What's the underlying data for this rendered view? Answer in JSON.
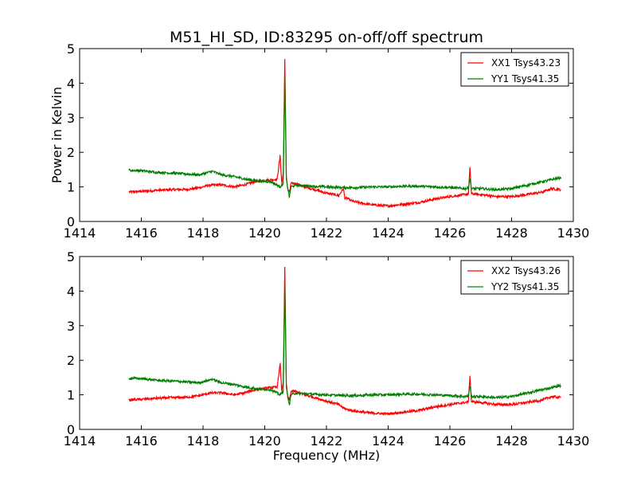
{
  "title": "M51_HI_SD, ID:83295 on-off/off spectrum",
  "colors": {
    "xx": "#ff0000",
    "yy": "#008000"
  },
  "chart_data": [
    {
      "type": "line",
      "xlabel": "",
      "ylabel": "Power in Kelvin",
      "xlim": [
        1414,
        1430
      ],
      "ylim": [
        0,
        5
      ],
      "x_ticks": [
        1414,
        1416,
        1418,
        1420,
        1422,
        1424,
        1426,
        1428,
        1430
      ],
      "y_ticks": [
        0,
        1,
        2,
        3,
        4,
        5
      ],
      "grid": false,
      "legend": "top-right",
      "series": [
        {
          "name": "XX1 Tsys43.23",
          "color": "#ff0000",
          "x": [
            1415.6,
            1416.0,
            1416.5,
            1417.0,
            1417.5,
            1417.9,
            1418.2,
            1418.6,
            1419.0,
            1419.3,
            1419.7,
            1420.1,
            1420.4,
            1420.5,
            1420.55,
            1420.6,
            1420.65,
            1420.7,
            1420.75,
            1420.8,
            1420.85,
            1421.0,
            1421.3,
            1421.7,
            1422.0,
            1422.4,
            1422.55,
            1422.6,
            1422.65,
            1422.8,
            1423.0,
            1423.5,
            1424.0,
            1424.5,
            1425.0,
            1425.5,
            1426.0,
            1426.5,
            1426.6,
            1426.65,
            1426.7,
            1427.0,
            1427.5,
            1428.0,
            1428.5,
            1429.0,
            1429.3,
            1429.6
          ],
          "y": [
            0.85,
            0.87,
            0.9,
            0.92,
            0.93,
            0.98,
            1.05,
            1.06,
            1.0,
            1.05,
            1.15,
            1.2,
            1.22,
            1.9,
            1.1,
            1.4,
            4.7,
            1.3,
            0.9,
            0.85,
            1.1,
            1.1,
            1.0,
            0.9,
            0.82,
            0.75,
            0.95,
            0.65,
            0.68,
            0.6,
            0.55,
            0.48,
            0.45,
            0.5,
            0.55,
            0.65,
            0.72,
            0.78,
            0.8,
            1.55,
            0.8,
            0.78,
            0.72,
            0.72,
            0.78,
            0.85,
            0.95,
            0.92
          ]
        },
        {
          "name": "YY1 Tsys41.35",
          "color": "#008000",
          "x": [
            1415.6,
            1416.0,
            1416.5,
            1417.0,
            1417.5,
            1417.9,
            1418.0,
            1418.3,
            1418.6,
            1419.0,
            1419.4,
            1419.8,
            1420.2,
            1420.5,
            1420.55,
            1420.6,
            1420.65,
            1420.7,
            1420.75,
            1420.8,
            1420.85,
            1421.0,
            1421.5,
            1422.0,
            1422.5,
            1423.0,
            1423.5,
            1424.0,
            1424.5,
            1425.0,
            1425.5,
            1426.0,
            1426.5,
            1426.6,
            1426.65,
            1426.7,
            1427.0,
            1427.5,
            1428.0,
            1428.5,
            1429.0,
            1429.6
          ],
          "y": [
            1.48,
            1.47,
            1.42,
            1.4,
            1.37,
            1.35,
            1.38,
            1.45,
            1.35,
            1.3,
            1.22,
            1.17,
            1.15,
            1.0,
            1.05,
            1.1,
            4.2,
            1.2,
            0.95,
            0.7,
            1.0,
            1.05,
            1.02,
            1.0,
            0.98,
            0.98,
            1.0,
            1.0,
            1.02,
            1.02,
            1.0,
            0.98,
            0.95,
            0.97,
            1.25,
            0.95,
            0.95,
            0.92,
            0.95,
            1.05,
            1.15,
            1.27
          ]
        }
      ]
    },
    {
      "type": "line",
      "xlabel": "Frequency (MHz)",
      "ylabel": "",
      "xlim": [
        1414,
        1430
      ],
      "ylim": [
        0,
        5
      ],
      "x_ticks": [
        1414,
        1416,
        1418,
        1420,
        1422,
        1424,
        1426,
        1428,
        1430
      ],
      "y_ticks": [
        0,
        1,
        2,
        3,
        4,
        5
      ],
      "grid": false,
      "legend": "top-right",
      "series": [
        {
          "name": "XX2 Tsys43.26",
          "color": "#ff0000",
          "x": [
            1415.6,
            1416.0,
            1416.5,
            1417.0,
            1417.5,
            1417.9,
            1418.2,
            1418.6,
            1419.0,
            1419.3,
            1419.7,
            1420.1,
            1420.4,
            1420.5,
            1420.55,
            1420.6,
            1420.65,
            1420.7,
            1420.75,
            1420.8,
            1420.85,
            1421.0,
            1421.3,
            1421.7,
            1422.0,
            1422.4,
            1422.55,
            1422.6,
            1422.65,
            1422.8,
            1423.0,
            1423.5,
            1424.0,
            1424.5,
            1425.0,
            1425.5,
            1426.0,
            1426.5,
            1426.6,
            1426.65,
            1426.7,
            1427.0,
            1427.5,
            1428.0,
            1428.5,
            1429.0,
            1429.3,
            1429.6
          ],
          "y": [
            0.85,
            0.87,
            0.9,
            0.92,
            0.93,
            0.98,
            1.05,
            1.06,
            1.0,
            1.05,
            1.15,
            1.2,
            1.22,
            1.9,
            1.1,
            1.4,
            4.7,
            1.3,
            0.9,
            0.85,
            1.1,
            1.1,
            1.0,
            0.9,
            0.82,
            0.72,
            0.62,
            0.6,
            0.58,
            0.55,
            0.52,
            0.47,
            0.45,
            0.5,
            0.55,
            0.65,
            0.72,
            0.78,
            0.8,
            1.55,
            0.8,
            0.78,
            0.72,
            0.72,
            0.78,
            0.85,
            0.95,
            0.92
          ]
        },
        {
          "name": "YY2 Tsys41.35",
          "color": "#008000",
          "x": [
            1415.6,
            1416.0,
            1416.5,
            1417.0,
            1417.5,
            1417.9,
            1418.0,
            1418.3,
            1418.6,
            1419.0,
            1419.4,
            1419.8,
            1420.2,
            1420.5,
            1420.55,
            1420.6,
            1420.65,
            1420.7,
            1420.75,
            1420.8,
            1420.85,
            1421.0,
            1421.5,
            1422.0,
            1422.5,
            1423.0,
            1423.5,
            1424.0,
            1424.5,
            1425.0,
            1425.5,
            1426.0,
            1426.5,
            1426.6,
            1426.65,
            1426.7,
            1427.0,
            1427.5,
            1428.0,
            1428.5,
            1429.0,
            1429.6
          ],
          "y": [
            1.48,
            1.47,
            1.42,
            1.4,
            1.37,
            1.35,
            1.38,
            1.45,
            1.35,
            1.3,
            1.22,
            1.17,
            1.15,
            1.0,
            1.05,
            1.1,
            4.2,
            1.2,
            0.95,
            0.7,
            1.0,
            1.05,
            1.02,
            1.0,
            0.98,
            0.98,
            1.0,
            1.0,
            1.02,
            1.02,
            1.0,
            0.98,
            0.95,
            0.97,
            1.25,
            0.95,
            0.95,
            0.92,
            0.95,
            1.05,
            1.15,
            1.27
          ]
        }
      ]
    }
  ]
}
